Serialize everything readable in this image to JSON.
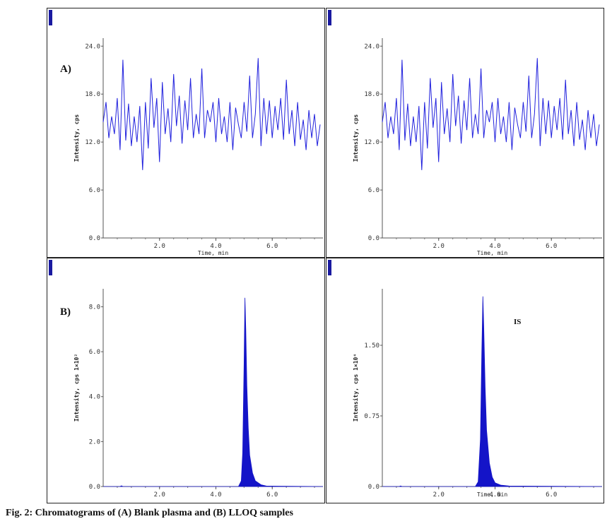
{
  "figure_caption": "Fig. 2: Chromatograms of (A) Blank plasma and (B) LLOQ samples",
  "colors": {
    "trace": "#2020dd",
    "fill": "#1414c8",
    "axis": "#555555",
    "marker": "#1a1aa0"
  },
  "panels": [
    {
      "id": "A-left",
      "panel_label": "A)",
      "annotation": ""
    },
    {
      "id": "A-right",
      "panel_label": "",
      "annotation": ""
    },
    {
      "id": "B-left",
      "panel_label": "B)",
      "annotation": ""
    },
    {
      "id": "B-right",
      "panel_label": "",
      "annotation": "IS"
    }
  ],
  "chart_data": [
    {
      "type": "line",
      "title": "",
      "panel_label": "A)",
      "xlabel": "Time, min",
      "ylabel": "Intensity, cps",
      "xlim": [
        0,
        7.8
      ],
      "ylim": [
        0,
        25
      ],
      "xticks": [
        2.0,
        4.0,
        6.0
      ],
      "xtick_labels": [
        "2.0",
        "4.0",
        "6.0"
      ],
      "yticks": [
        0,
        6.0,
        12.0,
        18.0,
        24.0
      ],
      "ytick_labels": [
        "0.0",
        "6.0",
        "12.0",
        "18.0",
        "24.0"
      ],
      "series": [
        {
          "x": [
            0.0,
            0.1,
            0.2,
            0.3,
            0.4,
            0.5,
            0.6,
            0.7,
            0.8,
            0.9,
            1.0,
            1.1,
            1.2,
            1.3,
            1.4,
            1.5,
            1.6,
            1.7,
            1.8,
            1.9,
            2.0,
            2.1,
            2.2,
            2.3,
            2.4,
            2.5,
            2.6,
            2.7,
            2.8,
            2.9,
            3.0,
            3.1,
            3.2,
            3.3,
            3.4,
            3.5,
            3.6,
            3.7,
            3.8,
            3.9,
            4.0,
            4.1,
            4.2,
            4.3,
            4.4,
            4.5,
            4.6,
            4.7,
            4.8,
            4.9,
            5.0,
            5.1,
            5.2,
            5.3,
            5.4,
            5.5,
            5.6,
            5.7,
            5.8,
            5.9,
            6.0,
            6.1,
            6.2,
            6.3,
            6.4,
            6.5,
            6.6,
            6.7,
            6.8,
            6.9,
            7.0,
            7.1,
            7.2,
            7.3,
            7.4,
            7.5,
            7.6,
            7.7
          ],
          "y": [
            14.5,
            17,
            12.5,
            15.2,
            13,
            17.5,
            11,
            22.3,
            12.2,
            16.8,
            11.5,
            15.2,
            12,
            16.5,
            8.5,
            17,
            11.2,
            20,
            13.8,
            17.5,
            9.5,
            19.5,
            13,
            16.2,
            12,
            20.5,
            14,
            17.8,
            11.8,
            17.2,
            13.5,
            20,
            12.5,
            15.5,
            13,
            21.2,
            12.5,
            16,
            14.5,
            17,
            12,
            17.5,
            13,
            15.2,
            12,
            17,
            11,
            16.3,
            14.2,
            12.5,
            17,
            13.3,
            20.3,
            12.5,
            15.5,
            22.5,
            11.5,
            17.5,
            13,
            17.2,
            12.5,
            16.5,
            13.5,
            17.5,
            12.3,
            19.8,
            13,
            16,
            11.5,
            17,
            12.3,
            14.8,
            11,
            16,
            12.5,
            15.5,
            11.5,
            14.2
          ]
        }
      ]
    },
    {
      "type": "line",
      "title": "",
      "xlabel": "Time, min",
      "ylabel": "Intensity, cps",
      "xlim": [
        0,
        7.8
      ],
      "ylim": [
        0,
        25
      ],
      "xticks": [
        2.0,
        4.0,
        6.0
      ],
      "xtick_labels": [
        "2.0",
        "4.0",
        "6.0"
      ],
      "yticks": [
        0,
        6.0,
        12.0,
        18.0,
        24.0
      ],
      "ytick_labels": [
        "0.0",
        "6.0",
        "12.0",
        "18.0",
        "24.0"
      ],
      "series": [
        {
          "x": [
            0.0,
            0.1,
            0.2,
            0.3,
            0.4,
            0.5,
            0.6,
            0.7,
            0.8,
            0.9,
            1.0,
            1.1,
            1.2,
            1.3,
            1.4,
            1.5,
            1.6,
            1.7,
            1.8,
            1.9,
            2.0,
            2.1,
            2.2,
            2.3,
            2.4,
            2.5,
            2.6,
            2.7,
            2.8,
            2.9,
            3.0,
            3.1,
            3.2,
            3.3,
            3.4,
            3.5,
            3.6,
            3.7,
            3.8,
            3.9,
            4.0,
            4.1,
            4.2,
            4.3,
            4.4,
            4.5,
            4.6,
            4.7,
            4.8,
            4.9,
            5.0,
            5.1,
            5.2,
            5.3,
            5.4,
            5.5,
            5.6,
            5.7,
            5.8,
            5.9,
            6.0,
            6.1,
            6.2,
            6.3,
            6.4,
            6.5,
            6.6,
            6.7,
            6.8,
            6.9,
            7.0,
            7.1,
            7.2,
            7.3,
            7.4,
            7.5,
            7.6,
            7.7
          ],
          "y": [
            14.5,
            17,
            12.5,
            15.2,
            13,
            17.5,
            11,
            22.3,
            12.2,
            16.8,
            11.5,
            15.2,
            12,
            16.5,
            8.5,
            17,
            11.2,
            20,
            13.8,
            17.5,
            9.5,
            19.5,
            13,
            16.2,
            12,
            20.5,
            14,
            17.8,
            11.8,
            17.2,
            13.5,
            20,
            12.5,
            15.5,
            13,
            21.2,
            12.5,
            16,
            14.5,
            17,
            12,
            17.5,
            13,
            15.2,
            12,
            17,
            11,
            16.3,
            14.2,
            12.5,
            17,
            13.3,
            20.3,
            12.5,
            15.5,
            22.5,
            11.5,
            17.5,
            13,
            17.2,
            12.5,
            16.5,
            13.5,
            17.5,
            12.3,
            19.8,
            13,
            16,
            11.5,
            17,
            12.3,
            14.8,
            11,
            16,
            12.5,
            15.5,
            11.5,
            14.2
          ]
        }
      ]
    },
    {
      "type": "area",
      "title": "",
      "panel_label": "B)",
      "xlabel": "",
      "ylabel": "Intensity, cps 1×10²",
      "xlim": [
        0,
        7.8
      ],
      "ylim": [
        0,
        8.8
      ],
      "xticks": [
        2.0,
        4.0,
        6.0
      ],
      "xtick_labels": [
        "2.0",
        "4.0",
        "6.0"
      ],
      "yticks": [
        0,
        2.0,
        4.0,
        6.0,
        8.0
      ],
      "ytick_labels": [
        "0.0",
        "2.0",
        "4.0",
        "6.0",
        "8.0"
      ],
      "series": [
        {
          "x": [
            0,
            0.6,
            0.65,
            0.7,
            4.8,
            4.9,
            4.95,
            5.0,
            5.03,
            5.06,
            5.1,
            5.15,
            5.2,
            5.3,
            5.4,
            5.6,
            5.8,
            7.8
          ],
          "y": [
            0,
            0,
            0.03,
            0,
            0,
            0.25,
            1.5,
            5.5,
            8.4,
            7.0,
            4.5,
            2.6,
            1.4,
            0.6,
            0.25,
            0.08,
            0.02,
            0
          ]
        }
      ]
    },
    {
      "type": "area",
      "title": "",
      "xlabel": "Time, min",
      "ylabel": "Intensity, cps 1×10⁴",
      "xlim": [
        0,
        7.8
      ],
      "ylim": [
        0,
        2.1
      ],
      "xticks": [
        2.0,
        4.0,
        6.0
      ],
      "xtick_labels": [
        "2.0",
        "4.0",
        "6.0"
      ],
      "yticks": [
        0,
        0.75,
        1.5
      ],
      "ytick_labels": [
        "0.0",
        "0.75",
        "1.50"
      ],
      "series": [
        {
          "x": [
            0,
            0.6,
            0.65,
            0.7,
            3.3,
            3.4,
            3.48,
            3.53,
            3.57,
            3.6,
            3.65,
            3.7,
            3.8,
            3.9,
            4.0,
            4.2,
            4.5,
            7.8
          ],
          "y": [
            0,
            0,
            0.006,
            0,
            0,
            0.05,
            0.5,
            1.4,
            2.02,
            1.7,
            1.05,
            0.6,
            0.25,
            0.1,
            0.04,
            0.015,
            0.005,
            0
          ]
        }
      ]
    }
  ]
}
